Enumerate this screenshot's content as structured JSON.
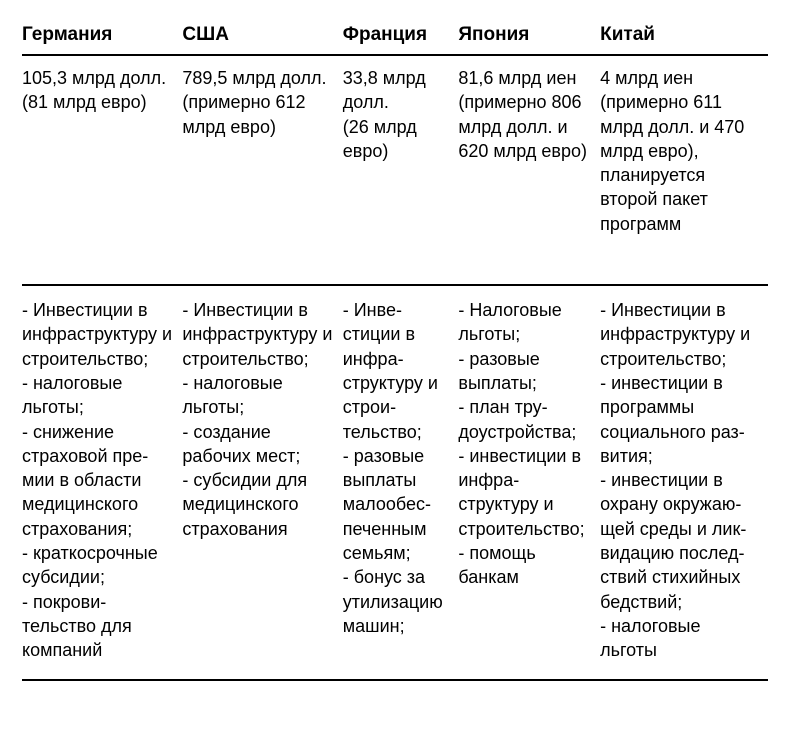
{
  "table": {
    "background_color": "#ffffff",
    "text_color": "#000000",
    "border_color": "#000000",
    "header_fontsize": 19,
    "body_fontsize": 18,
    "header_fontweight": 700,
    "columns": [
      {
        "id": "germany",
        "label": "Германия",
        "width_pct": 21.5
      },
      {
        "id": "usa",
        "label": "США",
        "width_pct": 21.5
      },
      {
        "id": "france",
        "label": "Франция",
        "width_pct": 15.5
      },
      {
        "id": "japan",
        "label": "Япония",
        "width_pct": 19
      },
      {
        "id": "china",
        "label": "Китай",
        "width_pct": 22.5
      }
    ],
    "rows": [
      {
        "id": "amounts",
        "cells": [
          "105,3 млрд долл.\n(81 млрд евро)",
          "789,5 млрд долл.\n(примерно 612 млрд евро)",
          "33,8 млрд долл.\n(26 млрд евро)",
          "81,6 млрд иен\n(примерно 806 млрд долл. и 620 млрд евро)",
          "4 млрд иен (примерно 611 млрд долл. и 470 млрд евро), планируется второй пакет программ"
        ]
      },
      {
        "id": "measures",
        "cells": [
          "- Инвестиции в инфраструктуру и строитель­ство;\n- налоговые льготы;\n- снижение страховой пре­мии в области медицинского страхования;\n- краткосрочные субсидии;\n- покрови­тельство  для компаний",
          "- Инвестиции в инфра­структуру и строитель­ство;\n- налоговые льготы;\n- создание рабочих мест;\n- субсидии для медицин­ского страхо­вания",
          "- Инве­стиции в инфра­структуру и строи­тельство;\n- разовые выплаты малообес­печенным семьям;\n- бонус за ути­лизацию машин;",
          "- Налоговые льготы;\n- разовые выплаты;\n- план тру­доустрой­ства;\n- инвестиции в инфра­структуру и строитель­ство;\n- помощь банкам",
          "- Инвестиции в инфраструктуру и строительство;\n- инвестиции в программы социального раз­вития;\n- инвестиции в охрану окружаю­щей среды и лик­видацию послед­ствий стихийных бедствий;\n- налоговые льготы"
        ]
      }
    ]
  }
}
